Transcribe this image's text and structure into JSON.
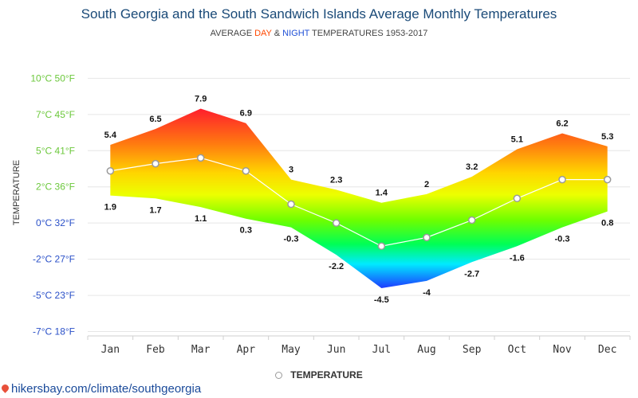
{
  "header": {
    "title": "South Georgia and the South Sandwich Islands Average Monthly Temperatures",
    "subtitle_prefix": "AVERAGE ",
    "subtitle_day": "DAY",
    "subtitle_amp": " & ",
    "subtitle_night": "NIGHT",
    "subtitle_suffix": " TEMPERATURES 1953-2017"
  },
  "legend": {
    "label": "TEMPERATURE"
  },
  "source": {
    "text": "hikersbay.com/climate/southgeorgia"
  },
  "colors": {
    "title": "#1a4a78",
    "day_word": "#ff4800",
    "night_word": "#1f4fd6",
    "axis_green": "#6cc83c",
    "axis_blue": "#2a50c8",
    "line": "#ffffff",
    "marker_stroke": "#9a9a9a"
  },
  "chart_data": {
    "type": "area",
    "categories": [
      "Jan",
      "Feb",
      "Mar",
      "Apr",
      "May",
      "Jun",
      "Jul",
      "Aug",
      "Sep",
      "Oct",
      "Nov",
      "Dec"
    ],
    "series": [
      {
        "values": [
          5.4,
          6.5,
          7.9,
          6.9,
          3,
          2.3,
          1.4,
          2,
          3.2,
          5.1,
          6.2,
          5.3
        ]
      },
      {
        "values": [
          1.9,
          1.7,
          1.1,
          0.3,
          -0.3,
          -2.2,
          -4.5,
          -4,
          -2.7,
          -1.6,
          -0.3,
          0.8
        ]
      },
      {
        "name": "TEMPERATURE",
        "values": [
          3.6,
          4.1,
          4.5,
          3.6,
          1.3,
          0,
          -1.6,
          -1,
          0.2,
          1.7,
          3.0,
          3.0
        ]
      }
    ],
    "y_ticks": [
      "10°C 50°F",
      "7°C 45°F",
      "5°C 41°F",
      "2°C 36°F",
      "0°C 32°F",
      "-2°C 27°F",
      "-5°C 23°F",
      "-7°C 18°F"
    ],
    "ylabel": "TEMPERATURE",
    "ylim": [
      -7.8,
      12
    ],
    "grid": true,
    "legend_position": "bottom-center"
  }
}
